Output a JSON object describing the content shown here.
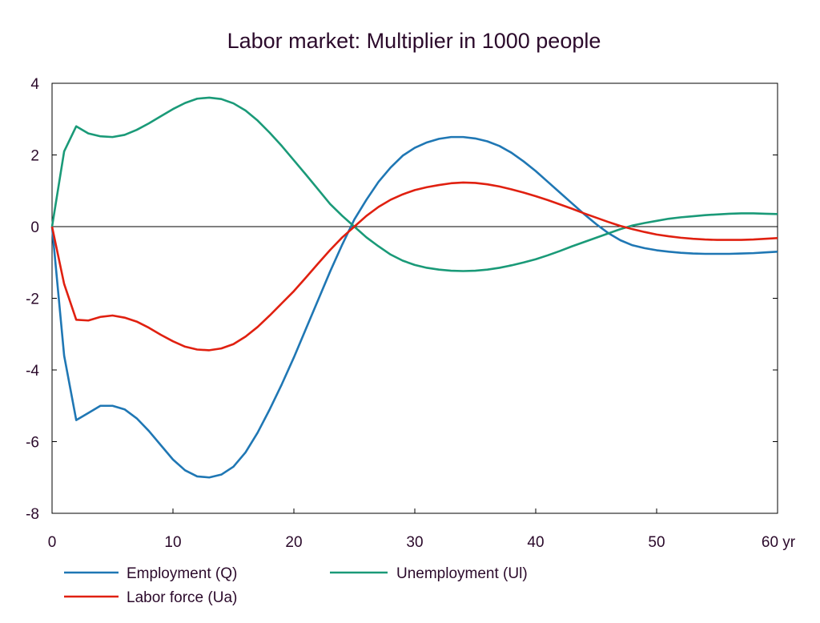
{
  "chart_data": {
    "type": "line",
    "title": "Labor market: Multiplier in 1000 people",
    "xlabel": "",
    "ylabel": "",
    "x_unit_label": "yr",
    "xlim": [
      0,
      60
    ],
    "ylim": [
      -8,
      4
    ],
    "x_ticks": [
      0,
      10,
      20,
      30,
      40,
      50,
      60
    ],
    "y_ticks": [
      -8,
      -6,
      -4,
      -2,
      0,
      2,
      4
    ],
    "x_tick_labels": [
      "0",
      "10",
      "20",
      "30",
      "40",
      "50",
      "60 yr"
    ],
    "y_tick_labels": [
      "-8",
      "-6",
      "-4",
      "-2",
      "0",
      "2",
      "4"
    ],
    "grid": false,
    "legend_position": "bottom",
    "x": [
      0,
      1,
      2,
      3,
      4,
      5,
      6,
      7,
      8,
      9,
      10,
      11,
      12,
      13,
      14,
      15,
      16,
      17,
      18,
      19,
      20,
      21,
      22,
      23,
      24,
      25,
      26,
      27,
      28,
      29,
      30,
      31,
      32,
      33,
      34,
      35,
      36,
      37,
      38,
      39,
      40,
      41,
      42,
      43,
      44,
      45,
      46,
      47,
      48,
      49,
      50,
      51,
      52,
      53,
      54,
      55,
      56,
      57,
      58,
      59,
      60
    ],
    "series": [
      {
        "name": "Employment (Q)",
        "color": "#1f77b4",
        "values": [
          0,
          -3.6,
          -5.4,
          -5.2,
          -5.0,
          -5.0,
          -5.1,
          -5.35,
          -5.7,
          -6.1,
          -6.5,
          -6.8,
          -6.97,
          -7.0,
          -6.92,
          -6.7,
          -6.3,
          -5.75,
          -5.1,
          -4.4,
          -3.65,
          -2.85,
          -2.05,
          -1.25,
          -0.5,
          0.2,
          0.75,
          1.25,
          1.65,
          1.98,
          2.2,
          2.35,
          2.45,
          2.5,
          2.5,
          2.46,
          2.38,
          2.25,
          2.06,
          1.82,
          1.55,
          1.25,
          0.95,
          0.65,
          0.35,
          0.07,
          -0.18,
          -0.38,
          -0.52,
          -0.6,
          -0.66,
          -0.7,
          -0.73,
          -0.75,
          -0.76,
          -0.76,
          -0.76,
          -0.75,
          -0.74,
          -0.72,
          -0.7
        ]
      },
      {
        "name": "Unemployment (Ul)",
        "color": "#1a9a78",
        "values": [
          0,
          2.1,
          2.8,
          2.6,
          2.52,
          2.5,
          2.56,
          2.7,
          2.88,
          3.08,
          3.28,
          3.45,
          3.57,
          3.6,
          3.56,
          3.44,
          3.24,
          2.96,
          2.62,
          2.25,
          1.85,
          1.45,
          1.04,
          0.63,
          0.3,
          0.0,
          -0.3,
          -0.55,
          -0.78,
          -0.95,
          -1.07,
          -1.15,
          -1.2,
          -1.23,
          -1.24,
          -1.23,
          -1.2,
          -1.15,
          -1.08,
          -1.0,
          -0.91,
          -0.8,
          -0.68,
          -0.55,
          -0.43,
          -0.31,
          -0.19,
          -0.07,
          0.03,
          0.1,
          0.16,
          0.22,
          0.26,
          0.29,
          0.32,
          0.34,
          0.36,
          0.37,
          0.37,
          0.36,
          0.35
        ]
      },
      {
        "name": "Labor force (Ua)",
        "color": "#e02010",
        "values": [
          0,
          -1.6,
          -2.6,
          -2.62,
          -2.52,
          -2.48,
          -2.54,
          -2.65,
          -2.82,
          -3.02,
          -3.2,
          -3.35,
          -3.43,
          -3.45,
          -3.4,
          -3.28,
          -3.07,
          -2.8,
          -2.48,
          -2.14,
          -1.8,
          -1.42,
          -1.03,
          -0.65,
          -0.3,
          0.0,
          0.3,
          0.55,
          0.75,
          0.9,
          1.02,
          1.1,
          1.16,
          1.21,
          1.23,
          1.22,
          1.18,
          1.12,
          1.04,
          0.95,
          0.85,
          0.74,
          0.62,
          0.5,
          0.37,
          0.25,
          0.13,
          0.02,
          -0.07,
          -0.15,
          -0.22,
          -0.27,
          -0.31,
          -0.34,
          -0.36,
          -0.37,
          -0.37,
          -0.37,
          -0.36,
          -0.34,
          -0.32
        ]
      }
    ]
  }
}
